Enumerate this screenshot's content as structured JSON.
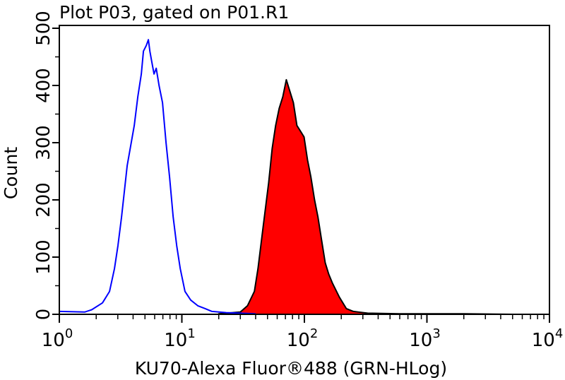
{
  "chart_data": {
    "type": "area",
    "title": "Plot P03, gated on P01.R1",
    "xlabel": "KU70-Alexa Fluor®488 (GRN-HLog)",
    "ylabel": "Count",
    "xscale": "log",
    "xlim": [
      1,
      10000
    ],
    "ylim": [
      0,
      500
    ],
    "xticks": [
      {
        "base": "10",
        "exp": "0"
      },
      {
        "base": "10",
        "exp": "1"
      },
      {
        "base": "10",
        "exp": "2"
      },
      {
        "base": "10",
        "exp": "3"
      },
      {
        "base": "10",
        "exp": "4"
      }
    ],
    "yticks": [
      "0",
      "100",
      "200",
      "300",
      "400",
      "500"
    ],
    "grid": false,
    "series": [
      {
        "style": "line",
        "color": "#0000ff",
        "points": [
          [
            1,
            5
          ],
          [
            1.61,
            4
          ],
          [
            1.84,
            8
          ],
          [
            2.25,
            20
          ],
          [
            2.57,
            40
          ],
          [
            2.82,
            80
          ],
          [
            3.01,
            120
          ],
          [
            3.22,
            170
          ],
          [
            3.58,
            260
          ],
          [
            4.09,
            330
          ],
          [
            4.37,
            380
          ],
          [
            4.67,
            420
          ],
          [
            4.86,
            460
          ],
          [
            5.13,
            470
          ],
          [
            5.33,
            480
          ],
          [
            5.48,
            460
          ],
          [
            5.7,
            440
          ],
          [
            5.93,
            420
          ],
          [
            6.18,
            430
          ],
          [
            6.51,
            400
          ],
          [
            6.95,
            370
          ],
          [
            7.43,
            300
          ],
          [
            7.94,
            240
          ],
          [
            8.49,
            170
          ],
          [
            9.08,
            120
          ],
          [
            9.7,
            80
          ],
          [
            10.6,
            40
          ],
          [
            11.8,
            25
          ],
          [
            13.5,
            15
          ],
          [
            15.5,
            10
          ],
          [
            17.6,
            5
          ],
          [
            23,
            3
          ],
          [
            30,
            2
          ],
          [
            40,
            1
          ]
        ]
      },
      {
        "style": "filled",
        "color": "#ff0000",
        "outline": "#000000",
        "points": [
          [
            20,
            1
          ],
          [
            30,
            4
          ],
          [
            34.3,
            15
          ],
          [
            39.1,
            40
          ],
          [
            41.8,
            80
          ],
          [
            45.9,
            150
          ],
          [
            51.1,
            230
          ],
          [
            54.6,
            290
          ],
          [
            58.3,
            330
          ],
          [
            62.3,
            360
          ],
          [
            66.6,
            380
          ],
          [
            71.2,
            410
          ],
          [
            76.1,
            390
          ],
          [
            81.3,
            370
          ],
          [
            86.9,
            330
          ],
          [
            92.9,
            320
          ],
          [
            99.3,
            310
          ],
          [
            106,
            270
          ],
          [
            113,
            240
          ],
          [
            121,
            200
          ],
          [
            129,
            170
          ],
          [
            138,
            130
          ],
          [
            148,
            90
          ],
          [
            158,
            70
          ],
          [
            169,
            55
          ],
          [
            193,
            30
          ],
          [
            220,
            10
          ],
          [
            251,
            5
          ],
          [
            328,
            2
          ],
          [
            600,
            1
          ],
          [
            2000,
            1
          ],
          [
            5000,
            0
          ]
        ]
      }
    ]
  }
}
